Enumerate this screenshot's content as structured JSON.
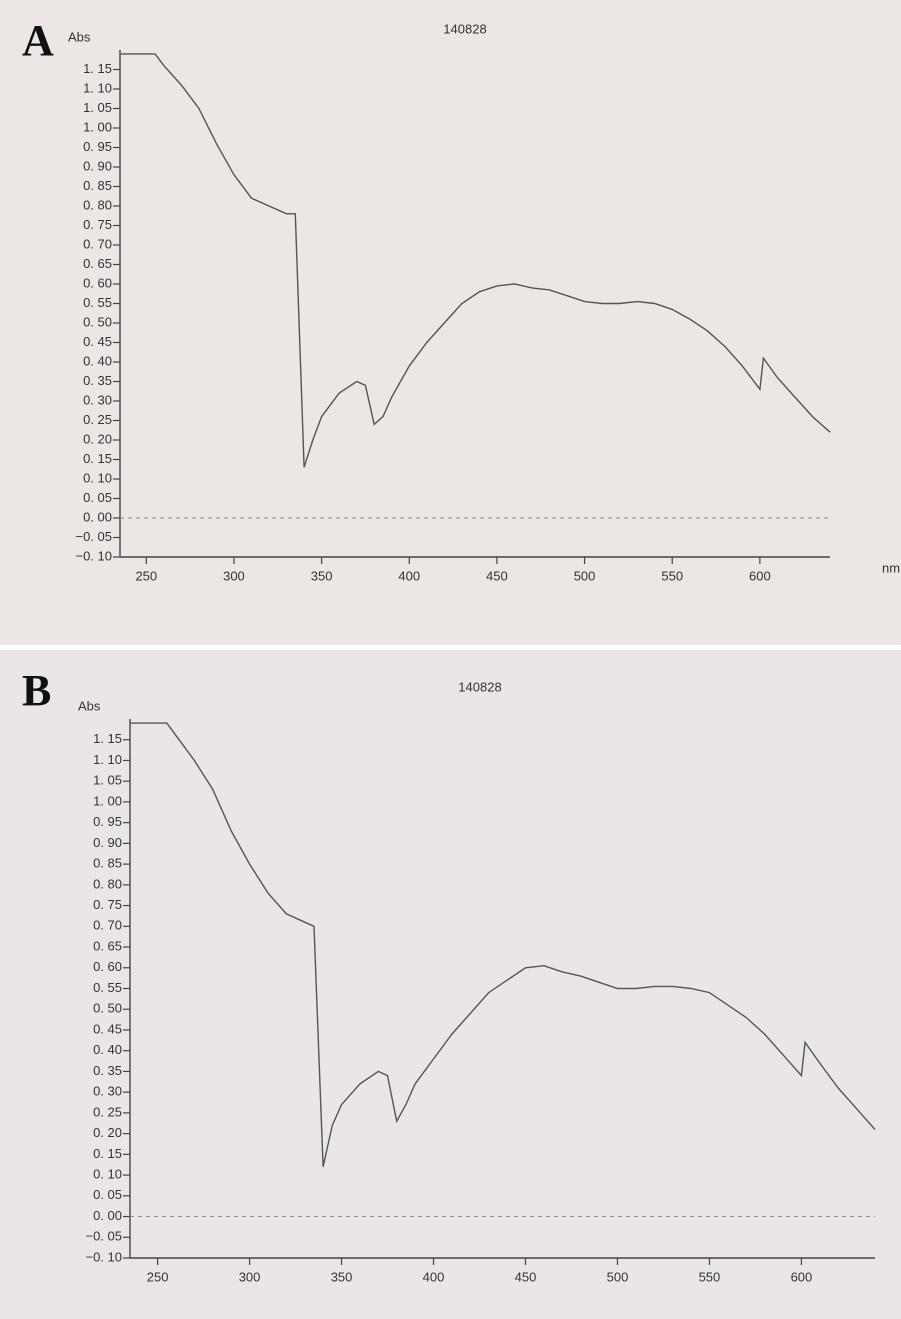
{
  "chart_data": [
    {
      "type": "line",
      "panel_label": "A",
      "title": "140828",
      "y_label": "Abs",
      "x_label": "nm",
      "xlim": [
        235,
        640
      ],
      "ylim": [
        -0.1,
        1.2
      ],
      "xticks": [
        250,
        300,
        350,
        400,
        450,
        500,
        550,
        600
      ],
      "yticks": [
        {
          "value": -0.1,
          "label": "−0. 10"
        },
        {
          "value": -0.05,
          "label": "−0. 05"
        },
        {
          "value": 0,
          "label": "0. 00"
        },
        {
          "value": 0.05,
          "label": "0. 05"
        },
        {
          "value": 0.1,
          "label": "0. 10"
        },
        {
          "value": 0.15,
          "label": "0. 15"
        },
        {
          "value": 0.2,
          "label": "0. 20"
        },
        {
          "value": 0.25,
          "label": "0. 25"
        },
        {
          "value": 0.3,
          "label": "0. 30"
        },
        {
          "value": 0.35,
          "label": "0. 35"
        },
        {
          "value": 0.4,
          "label": "0. 40"
        },
        {
          "value": 0.45,
          "label": "0. 45"
        },
        {
          "value": 0.5,
          "label": "0. 50"
        },
        {
          "value": 0.55,
          "label": "0. 55"
        },
        {
          "value": 0.6,
          "label": "0. 60"
        },
        {
          "value": 0.65,
          "label": "0. 65"
        },
        {
          "value": 0.7,
          "label": "0. 70"
        },
        {
          "value": 0.75,
          "label": "0. 75"
        },
        {
          "value": 0.8,
          "label": "0. 80"
        },
        {
          "value": 0.85,
          "label": "0. 85"
        },
        {
          "value": 0.9,
          "label": "0. 90"
        },
        {
          "value": 0.95,
          "label": "0. 95"
        },
        {
          "value": 1.0,
          "label": "1. 00"
        },
        {
          "value": 1.05,
          "label": "1. 05"
        },
        {
          "value": 1.1,
          "label": "1. 10"
        },
        {
          "value": 1.15,
          "label": "1. 15"
        }
      ],
      "reference_line": 0,
      "color": "#555555",
      "x": [
        235,
        255,
        260,
        270,
        280,
        290,
        300,
        310,
        320,
        330,
        335,
        340,
        345,
        350,
        360,
        370,
        375,
        380,
        385,
        390,
        400,
        410,
        420,
        430,
        440,
        450,
        460,
        470,
        480,
        490,
        500,
        510,
        520,
        530,
        540,
        550,
        560,
        570,
        580,
        590,
        600,
        602,
        610,
        620,
        630,
        640
      ],
      "values": [
        1.19,
        1.19,
        1.16,
        1.11,
        1.05,
        0.96,
        0.88,
        0.82,
        0.8,
        0.78,
        0.78,
        0.13,
        0.2,
        0.26,
        0.32,
        0.35,
        0.34,
        0.24,
        0.26,
        0.31,
        0.39,
        0.45,
        0.5,
        0.55,
        0.58,
        0.595,
        0.6,
        0.59,
        0.585,
        0.57,
        0.555,
        0.55,
        0.55,
        0.555,
        0.55,
        0.535,
        0.51,
        0.48,
        0.44,
        0.39,
        0.33,
        0.41,
        0.36,
        0.31,
        0.26,
        0.22
      ]
    },
    {
      "type": "line",
      "panel_label": "B",
      "title": "140828",
      "y_label": "Abs",
      "xlim": [
        235,
        640
      ],
      "ylim": [
        -0.1,
        1.2
      ],
      "xticks": [
        250,
        300,
        350,
        400,
        450,
        500,
        550,
        600
      ],
      "yticks": [
        {
          "value": -0.1,
          "label": "−0. 10"
        },
        {
          "value": -0.05,
          "label": "−0. 05"
        },
        {
          "value": 0,
          "label": "0. 00"
        },
        {
          "value": 0.05,
          "label": "0. 05"
        },
        {
          "value": 0.1,
          "label": "0. 10"
        },
        {
          "value": 0.15,
          "label": "0. 15"
        },
        {
          "value": 0.2,
          "label": "0. 20"
        },
        {
          "value": 0.25,
          "label": "0. 25"
        },
        {
          "value": 0.3,
          "label": "0. 30"
        },
        {
          "value": 0.35,
          "label": "0. 35"
        },
        {
          "value": 0.4,
          "label": "0. 40"
        },
        {
          "value": 0.45,
          "label": "0. 45"
        },
        {
          "value": 0.5,
          "label": "0. 50"
        },
        {
          "value": 0.55,
          "label": "0. 55"
        },
        {
          "value": 0.6,
          "label": "0. 60"
        },
        {
          "value": 0.65,
          "label": "0. 65"
        },
        {
          "value": 0.7,
          "label": "0. 70"
        },
        {
          "value": 0.75,
          "label": "0. 75"
        },
        {
          "value": 0.8,
          "label": "0. 80"
        },
        {
          "value": 0.85,
          "label": "0. 85"
        },
        {
          "value": 0.9,
          "label": "0. 90"
        },
        {
          "value": 0.95,
          "label": "0. 95"
        },
        {
          "value": 1.0,
          "label": "1. 00"
        },
        {
          "value": 1.05,
          "label": "1. 05"
        },
        {
          "value": 1.1,
          "label": "1. 10"
        },
        {
          "value": 1.15,
          "label": "1. 15"
        }
      ],
      "reference_line": 0,
      "color": "#555555",
      "x": [
        235,
        255,
        260,
        270,
        280,
        290,
        300,
        310,
        320,
        330,
        335,
        340,
        345,
        350,
        360,
        370,
        375,
        380,
        385,
        390,
        400,
        410,
        420,
        430,
        440,
        450,
        460,
        470,
        480,
        490,
        500,
        510,
        520,
        530,
        540,
        550,
        560,
        570,
        580,
        590,
        600,
        602,
        610,
        620,
        630,
        640
      ],
      "values": [
        1.19,
        1.19,
        1.16,
        1.1,
        1.03,
        0.93,
        0.85,
        0.78,
        0.73,
        0.71,
        0.7,
        0.12,
        0.22,
        0.27,
        0.32,
        0.35,
        0.34,
        0.23,
        0.27,
        0.32,
        0.38,
        0.44,
        0.49,
        0.54,
        0.57,
        0.6,
        0.605,
        0.59,
        0.58,
        0.565,
        0.55,
        0.55,
        0.555,
        0.555,
        0.55,
        0.54,
        0.51,
        0.48,
        0.44,
        0.39,
        0.34,
        0.42,
        0.37,
        0.31,
        0.26,
        0.21
      ]
    }
  ]
}
